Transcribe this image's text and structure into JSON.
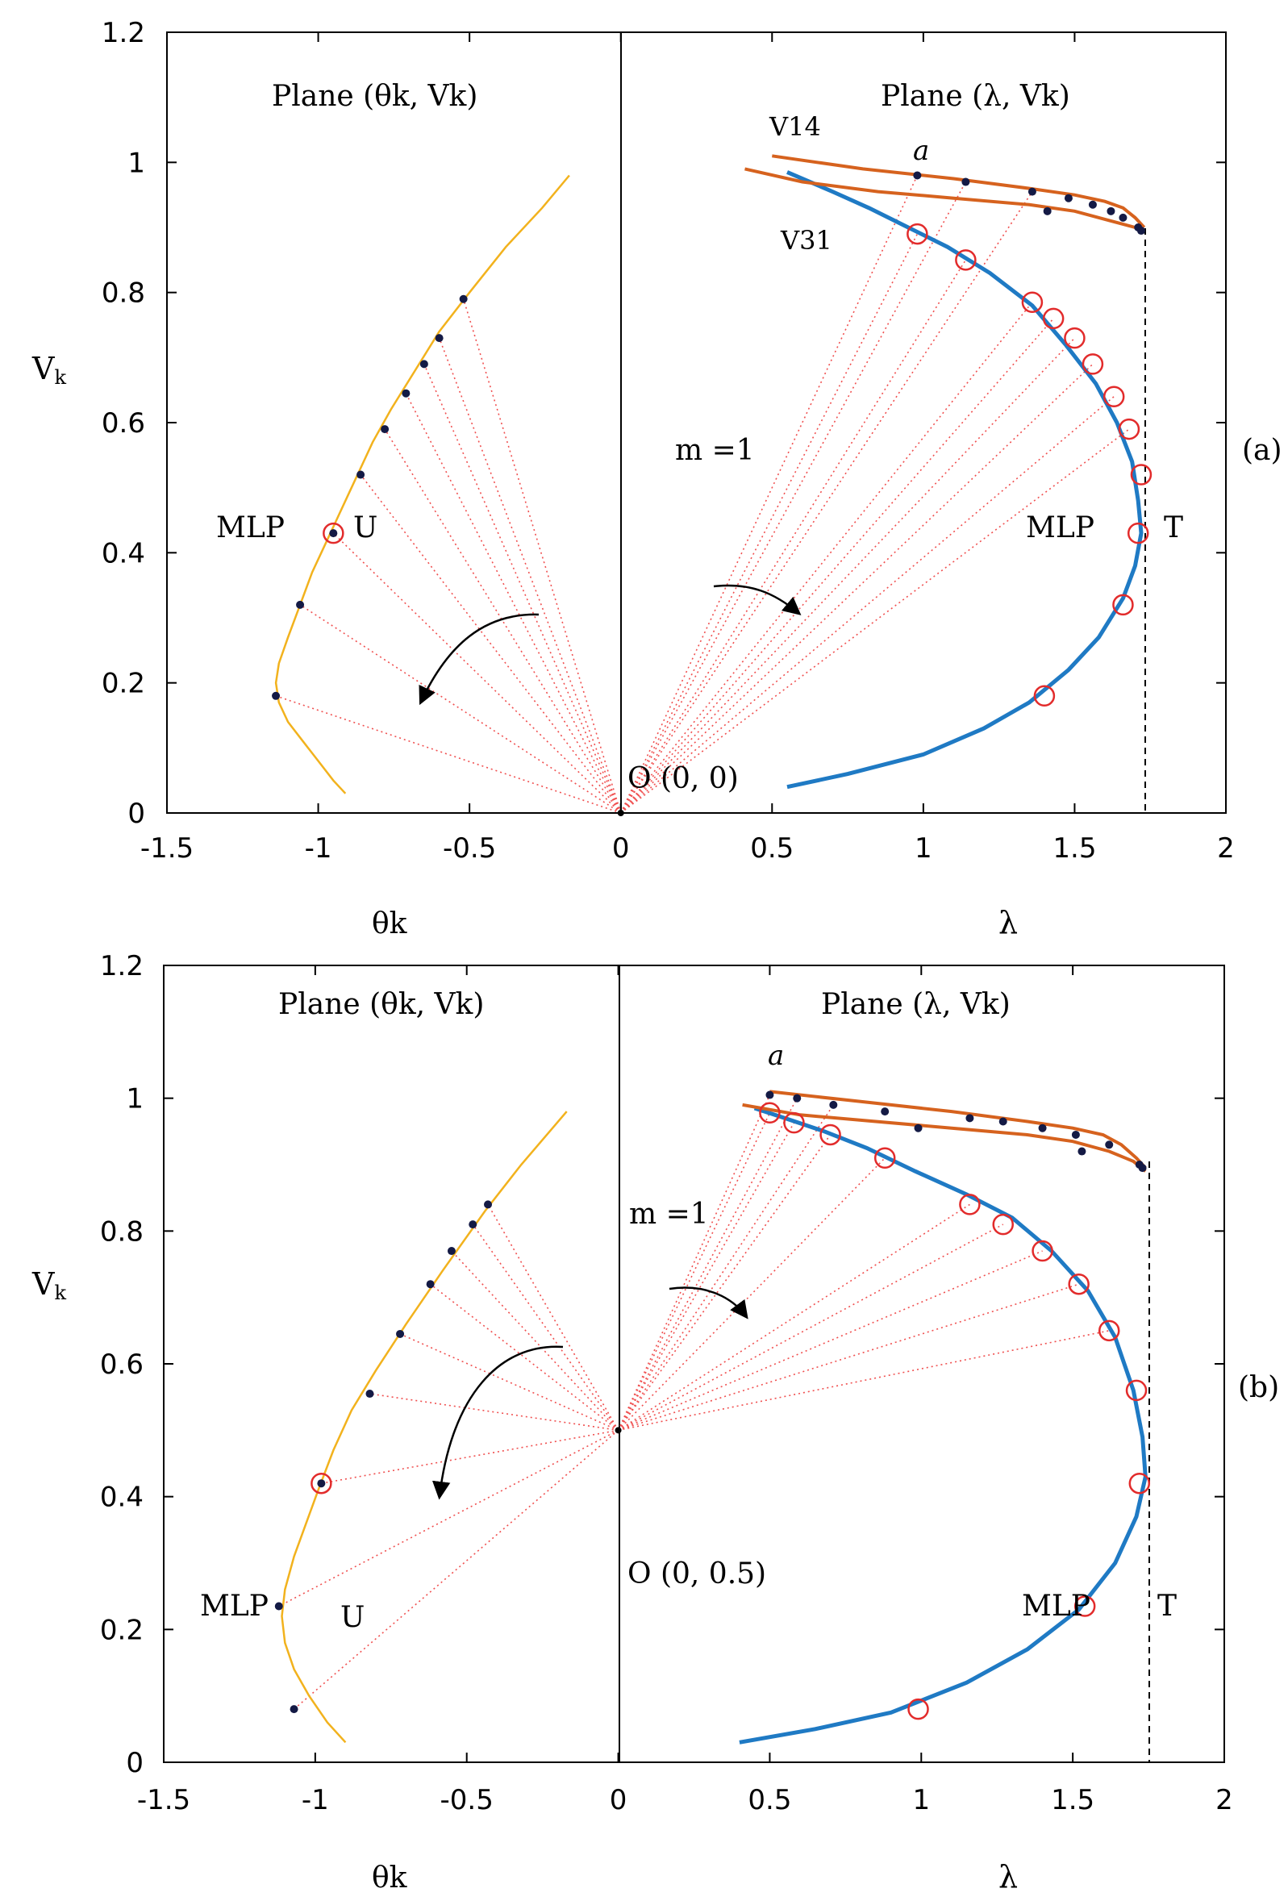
{
  "chart_data": [
    {
      "type": "line",
      "panel": "(a)",
      "ylabel": "V_k",
      "ylim": [
        0,
        1.2
      ],
      "xlim": [
        -1.5,
        2
      ],
      "yticks": [
        "0",
        "0.2",
        "0.4",
        "0.6",
        "0.8",
        "1",
        "1.2"
      ],
      "xticks": [
        "-1.5",
        "-1",
        "-0.5",
        "0",
        "0.5",
        "1",
        "1.5",
        "2"
      ],
      "xlabel_left": "θk",
      "xlabel_right": "λ",
      "left_title": "Plane (θk, Vk)",
      "right_title": "Plane (λ, Vk)",
      "origin": [
        0,
        0
      ],
      "origin_label": "O (0, 0)",
      "m_label": "m =1",
      "mlp_left_label": "MLP",
      "u_label": "U",
      "mlp_right_label": "MLP",
      "t_label": "T",
      "a_label": "a",
      "v_upper_label": "V14",
      "v_lower_label": "V31",
      "nose_lambda": 1.73,
      "left_curve": [
        [
          -0.91,
          0.03
        ],
        [
          -0.95,
          0.05
        ],
        [
          -1.0,
          0.08
        ],
        [
          -1.05,
          0.11
        ],
        [
          -1.1,
          0.14
        ],
        [
          -1.13,
          0.17
        ],
        [
          -1.14,
          0.2
        ],
        [
          -1.13,
          0.23
        ],
        [
          -1.1,
          0.27
        ],
        [
          -1.06,
          0.32
        ],
        [
          -1.02,
          0.37
        ],
        [
          -0.98,
          0.41
        ],
        [
          -0.94,
          0.45
        ],
        [
          -0.9,
          0.49
        ],
        [
          -0.86,
          0.53
        ],
        [
          -0.82,
          0.57
        ],
        [
          -0.76,
          0.62
        ],
        [
          -0.68,
          0.68
        ],
        [
          -0.6,
          0.74
        ],
        [
          -0.5,
          0.8
        ],
        [
          -0.38,
          0.87
        ],
        [
          -0.26,
          0.93
        ],
        [
          -0.17,
          0.98
        ]
      ],
      "left_points": [
        [
          -1.14,
          0.18
        ],
        [
          -1.06,
          0.32
        ],
        [
          -0.86,
          0.52
        ],
        [
          -0.78,
          0.59
        ],
        [
          -0.71,
          0.645
        ],
        [
          -0.65,
          0.69
        ],
        [
          -0.6,
          0.73
        ],
        [
          -0.52,
          0.79
        ]
      ],
      "left_mlp": [
        -0.95,
        0.43
      ],
      "blue_curve": [
        [
          0.55,
          0.04
        ],
        [
          0.75,
          0.06
        ],
        [
          1.0,
          0.09
        ],
        [
          1.2,
          0.13
        ],
        [
          1.35,
          0.17
        ],
        [
          1.48,
          0.22
        ],
        [
          1.58,
          0.27
        ],
        [
          1.66,
          0.33
        ],
        [
          1.7,
          0.38
        ],
        [
          1.72,
          0.43
        ],
        [
          1.71,
          0.48
        ],
        [
          1.69,
          0.54
        ],
        [
          1.64,
          0.6
        ],
        [
          1.57,
          0.66
        ],
        [
          1.47,
          0.72
        ],
        [
          1.36,
          0.78
        ],
        [
          1.22,
          0.83
        ],
        [
          1.08,
          0.87
        ],
        [
          0.95,
          0.9
        ],
        [
          0.82,
          0.93
        ],
        [
          0.7,
          0.955
        ],
        [
          0.55,
          0.985
        ]
      ],
      "blue_markers": [
        [
          1.4,
          0.18
        ],
        [
          1.66,
          0.32
        ],
        [
          1.71,
          0.43
        ],
        [
          1.72,
          0.52
        ],
        [
          1.68,
          0.59
        ],
        [
          1.63,
          0.64
        ],
        [
          1.56,
          0.69
        ],
        [
          1.5,
          0.73
        ],
        [
          1.43,
          0.76
        ],
        [
          1.36,
          0.785
        ],
        [
          1.14,
          0.85
        ],
        [
          0.98,
          0.89
        ]
      ],
      "v14_curve": [
        [
          0.5,
          1.01
        ],
        [
          0.8,
          0.99
        ],
        [
          1.1,
          0.975
        ],
        [
          1.35,
          0.96
        ],
        [
          1.5,
          0.95
        ],
        [
          1.6,
          0.94
        ],
        [
          1.66,
          0.93
        ],
        [
          1.7,
          0.915
        ],
        [
          1.73,
          0.9
        ]
      ],
      "v14_points": [
        [
          0.98,
          0.98
        ],
        [
          1.14,
          0.97
        ],
        [
          1.36,
          0.955
        ],
        [
          1.48,
          0.945
        ],
        [
          1.56,
          0.935
        ],
        [
          1.62,
          0.925
        ],
        [
          1.66,
          0.915
        ],
        [
          1.71,
          0.9
        ]
      ],
      "v31_curve": [
        [
          0.41,
          0.99
        ],
        [
          0.6,
          0.97
        ],
        [
          0.85,
          0.955
        ],
        [
          1.1,
          0.945
        ],
        [
          1.35,
          0.935
        ],
        [
          1.5,
          0.925
        ],
        [
          1.62,
          0.91
        ],
        [
          1.7,
          0.9
        ],
        [
          1.73,
          0.895
        ]
      ],
      "v31_points": [
        [
          1.41,
          0.925
        ],
        [
          1.72,
          0.895
        ]
      ]
    },
    {
      "type": "line",
      "panel": "(b)",
      "ylabel": "V_k",
      "ylim": [
        0,
        1.2
      ],
      "xlim": [
        -1.5,
        2
      ],
      "yticks": [
        "0",
        "0.2",
        "0.4",
        "0.6",
        "0.8",
        "1",
        "1.2"
      ],
      "xticks": [
        "-1.5",
        "-1",
        "-0.5",
        "0",
        "0.5",
        "1",
        "1.5",
        "2"
      ],
      "xlabel_left": "θk",
      "xlabel_right": "λ",
      "left_title": "Plane (θk, Vk)",
      "right_title": "Plane (λ, Vk)",
      "origin": [
        0,
        0.5
      ],
      "origin_label": "O (0, 0.5)",
      "m_label": "m =1",
      "mlp_left_label": "MLP",
      "u_label": "U",
      "mlp_right_label": "MLP",
      "t_label": "T",
      "a_label": "a",
      "v_upper_label": "",
      "v_lower_label": "",
      "nose_lambda": 1.75,
      "left_curve": [
        [
          -0.9,
          0.03
        ],
        [
          -0.96,
          0.06
        ],
        [
          -1.02,
          0.1
        ],
        [
          -1.07,
          0.14
        ],
        [
          -1.1,
          0.18
        ],
        [
          -1.11,
          0.22
        ],
        [
          -1.1,
          0.26
        ],
        [
          -1.07,
          0.31
        ],
        [
          -1.03,
          0.36
        ],
        [
          -0.99,
          0.41
        ],
        [
          -0.94,
          0.47
        ],
        [
          -0.88,
          0.53
        ],
        [
          -0.8,
          0.59
        ],
        [
          -0.7,
          0.66
        ],
        [
          -0.58,
          0.74
        ],
        [
          -0.44,
          0.83
        ],
        [
          -0.32,
          0.9
        ],
        [
          -0.17,
          0.98
        ]
      ],
      "left_points": [
        [
          -1.07,
          0.08
        ],
        [
          -1.12,
          0.235
        ],
        [
          -0.82,
          0.555
        ],
        [
          -0.72,
          0.645
        ],
        [
          -0.62,
          0.72
        ],
        [
          -0.55,
          0.77
        ],
        [
          -0.48,
          0.81
        ],
        [
          -0.43,
          0.84
        ]
      ],
      "left_mlp": [
        -0.98,
        0.42
      ],
      "blue_curve": [
        [
          0.4,
          0.03
        ],
        [
          0.65,
          0.05
        ],
        [
          0.9,
          0.075
        ],
        [
          1.15,
          0.12
        ],
        [
          1.35,
          0.17
        ],
        [
          1.52,
          0.23
        ],
        [
          1.64,
          0.3
        ],
        [
          1.71,
          0.37
        ],
        [
          1.74,
          0.43
        ],
        [
          1.73,
          0.49
        ],
        [
          1.7,
          0.56
        ],
        [
          1.64,
          0.64
        ],
        [
          1.55,
          0.71
        ],
        [
          1.43,
          0.77
        ],
        [
          1.3,
          0.82
        ],
        [
          1.15,
          0.855
        ],
        [
          0.98,
          0.89
        ],
        [
          0.82,
          0.925
        ],
        [
          0.68,
          0.95
        ],
        [
          0.55,
          0.97
        ],
        [
          0.45,
          0.985
        ]
      ],
      "blue_markers": [
        [
          0.99,
          0.08
        ],
        [
          1.54,
          0.235
        ],
        [
          1.72,
          0.42
        ],
        [
          1.71,
          0.56
        ],
        [
          1.62,
          0.65
        ],
        [
          1.52,
          0.72
        ],
        [
          1.4,
          0.77
        ],
        [
          1.27,
          0.81
        ],
        [
          1.16,
          0.84
        ],
        [
          0.88,
          0.91
        ],
        [
          0.7,
          0.945
        ],
        [
          0.58,
          0.963
        ],
        [
          0.5,
          0.978
        ]
      ],
      "v14_curve": [
        [
          0.5,
          1.01
        ],
        [
          0.8,
          0.995
        ],
        [
          1.1,
          0.98
        ],
        [
          1.35,
          0.965
        ],
        [
          1.5,
          0.955
        ],
        [
          1.6,
          0.945
        ],
        [
          1.66,
          0.93
        ],
        [
          1.71,
          0.91
        ],
        [
          1.74,
          0.895
        ]
      ],
      "v14_points": [
        [
          0.5,
          1.005
        ],
        [
          0.59,
          1.0
        ],
        [
          0.71,
          0.99
        ],
        [
          0.88,
          0.98
        ],
        [
          1.16,
          0.97
        ],
        [
          1.27,
          0.965
        ],
        [
          1.4,
          0.955
        ],
        [
          1.51,
          0.945
        ],
        [
          1.62,
          0.93
        ],
        [
          1.72,
          0.9
        ]
      ],
      "v31_curve": [
        [
          0.41,
          0.99
        ],
        [
          0.6,
          0.975
        ],
        [
          0.85,
          0.965
        ],
        [
          1.1,
          0.955
        ],
        [
          1.35,
          0.945
        ],
        [
          1.5,
          0.935
        ],
        [
          1.62,
          0.92
        ],
        [
          1.7,
          0.905
        ],
        [
          1.74,
          0.89
        ]
      ],
      "v31_points": [
        [
          0.99,
          0.955
        ],
        [
          1.53,
          0.92
        ],
        [
          1.73,
          0.895
        ]
      ]
    }
  ]
}
